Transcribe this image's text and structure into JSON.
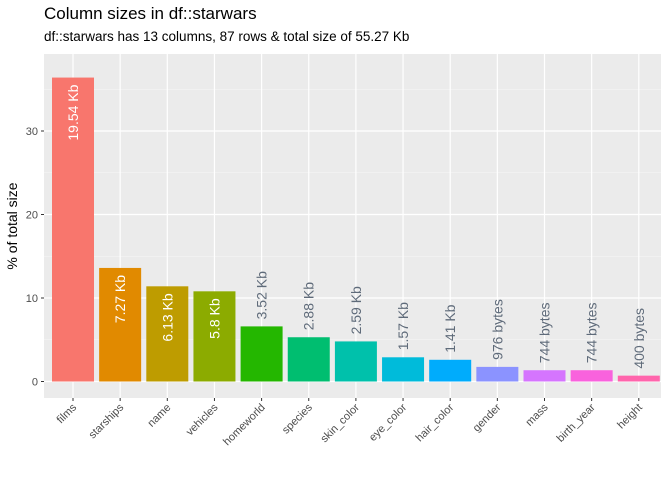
{
  "chart_data": {
    "type": "bar",
    "title": "Column sizes in df::starwars",
    "subtitle": "df::starwars has 13 columns, 87 rows & total size of 55.27 Kb",
    "xlabel": "",
    "ylabel": "% of total size",
    "ylim": [
      0,
      38
    ],
    "yticks": [
      0,
      10,
      20,
      30
    ],
    "grid": true,
    "legend": "none",
    "categories": [
      "films",
      "starships",
      "name",
      "vehicles",
      "homeworld",
      "species",
      "skin_color",
      "eye_color",
      "hair_color",
      "gender",
      "mass",
      "birth_year",
      "height"
    ],
    "values": [
      36.4,
      13.6,
      11.4,
      10.8,
      6.6,
      5.3,
      4.8,
      2.9,
      2.6,
      1.75,
      1.35,
      1.35,
      0.7
    ],
    "labels": [
      "19.54 Kb",
      "7.27 Kb",
      "6.13 Kb",
      "5.8 Kb",
      "3.52 Kb",
      "2.88 Kb",
      "2.59 Kb",
      "1.57 Kb",
      "1.41 Kb",
      "976 bytes",
      "744 bytes",
      "744 bytes",
      "400 bytes"
    ],
    "colors": [
      "#F8766D",
      "#E18A00",
      "#BE9C00",
      "#8CAB00",
      "#24B700",
      "#00BE70",
      "#00C1AB",
      "#00BBDA",
      "#00ACFC",
      "#8B93FF",
      "#D575FE",
      "#F962DD",
      "#FF65AC"
    ]
  }
}
